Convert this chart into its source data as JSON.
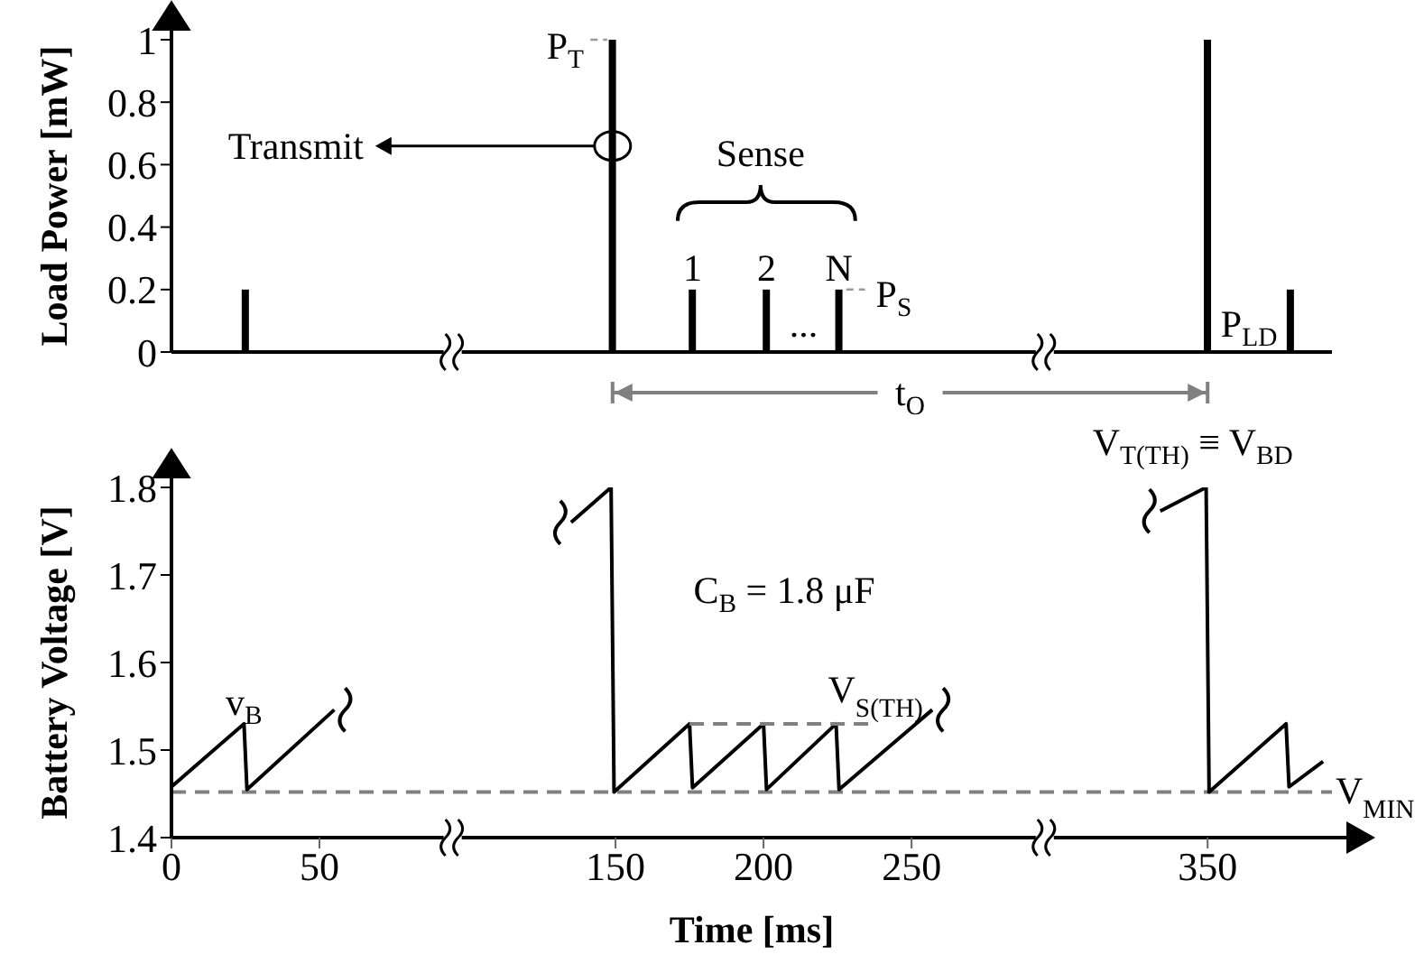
{
  "chart_data": [
    {
      "type": "bar",
      "ylabel": "Load Power [mW]",
      "x": [
        25,
        149,
        176,
        201,
        225.5,
        350,
        378
      ],
      "values": [
        0.2,
        1,
        0.2,
        0.2,
        0.2,
        1,
        0.2
      ],
      "color": "#000000",
      "xlim": [
        0,
        392
      ],
      "ylim": [
        0,
        1
      ],
      "yticks": [
        0,
        0.2,
        0.4,
        0.6,
        0.8,
        1
      ],
      "tick_labels": "y",
      "annotations": [
        "P$_{T}$",
        "Transmit",
        "Sense",
        "1",
        "2",
        "...",
        "N",
        "P$_{S}$",
        "P$_{LD}$",
        "t$_{O}$"
      ]
    },
    {
      "type": "line",
      "xlabel": "Time [ms]",
      "ylabel": "Battery Voltage [V]",
      "xlim": [
        0,
        392
      ],
      "xticks": [
        0,
        50,
        150,
        200,
        250,
        350
      ],
      "ylim": [
        1.4,
        1.8
      ],
      "yticks": [
        1.4,
        1.5,
        1.6,
        1.7,
        1.8
      ],
      "marker": "none",
      "line_style": "solid",
      "series": [
        {
          "x": [
            0,
            24.5,
            25.5,
            55,
            95,
            135,
            148.5,
            149.5,
            175,
            176,
            200,
            201,
            224.5,
            225.5,
            257,
            295,
            334,
            349.5,
            350.5,
            376.5,
            377.5,
            389
          ],
          "values": [
            1.458,
            1.53,
            1.455,
            1.546,
            null,
            1.76,
            1.8,
            1.452,
            1.53,
            1.457,
            1.53,
            1.455,
            1.53,
            1.455,
            1.546,
            null,
            1.773,
            1.8,
            1.452,
            1.53,
            1.458,
            1.487
          ],
          "color": "#000000"
        },
        {
          "name": "V$_{S(TH)}$",
          "type": "line",
          "x": [
            175,
            236
          ],
          "values": [
            1.53,
            1.53
          ],
          "color": "#808080",
          "line_style": "dashed"
        }
      ],
      "ref_lines": [
        {
          "axis": "y",
          "value": 1.452,
          "label": "V$_{MIN}$",
          "color": "#808080",
          "line_style": "dashed"
        }
      ],
      "annotations": [
        "v$_{B}$",
        "C$_{B}$ = 1.8 μF",
        "V$_{T(TH)}$ ≡ V$_{BD}$"
      ]
    }
  ]
}
